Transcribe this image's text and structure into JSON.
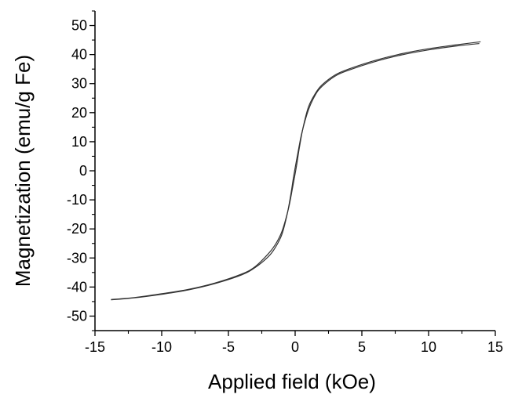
{
  "chart_data": {
    "type": "line",
    "title": "",
    "xlabel": "Applied field (kOe)",
    "ylabel": "Magnetization (emu/g Fe)",
    "xlim": [
      -15,
      15
    ],
    "ylim": [
      -55,
      55
    ],
    "x_ticks": [
      -15,
      -10,
      -5,
      0,
      5,
      10,
      15
    ],
    "y_ticks": [
      -50,
      -40,
      -30,
      -20,
      -10,
      0,
      10,
      20,
      30,
      40,
      50
    ],
    "x_tick_labels": [
      "-15",
      "-10",
      "-5",
      "0",
      "5",
      "10",
      "15"
    ],
    "y_tick_labels": [
      "-50",
      "-40",
      "-30",
      "-20",
      "-10",
      "0",
      "10",
      "20",
      "30",
      "40",
      "50"
    ],
    "grid": false,
    "line_color": "#333333",
    "series": [
      {
        "x": [
          13.9,
          12,
          10,
          8,
          6,
          4,
          3,
          2,
          1.5,
          1,
          0.6,
          0.3,
          0.15,
          0,
          -0.2,
          -0.5,
          -1,
          -1.5,
          -2,
          -3,
          -4,
          -6,
          -8,
          -10,
          -12,
          -13.8
        ],
        "values": [
          44.4,
          43.3,
          42,
          40.3,
          38,
          35,
          33,
          29.5,
          26.5,
          22,
          15,
          7.5,
          3,
          -1,
          -6,
          -13,
          -21,
          -25.5,
          -28.5,
          -33,
          -35.5,
          -38.6,
          -40.8,
          -42.3,
          -43.6,
          -44.3
        ]
      },
      {
        "x": [
          13.8,
          12,
          10,
          8,
          6,
          4,
          3,
          2,
          1.5,
          1,
          0.5,
          0.2,
          0,
          -0.15,
          -0.3,
          -0.6,
          -1,
          -1.5,
          -2,
          -3,
          -4,
          -6,
          -8,
          -10,
          -12,
          -13.8
        ],
        "values": [
          43.8,
          42.9,
          41.6,
          39.9,
          37.6,
          34.6,
          32.6,
          29,
          26,
          21,
          13,
          6,
          1,
          -3,
          -7.5,
          -15,
          -22,
          -26.5,
          -29.5,
          -33.3,
          -35.8,
          -38.8,
          -41,
          -42.5,
          -43.7,
          -44.4
        ]
      }
    ]
  }
}
